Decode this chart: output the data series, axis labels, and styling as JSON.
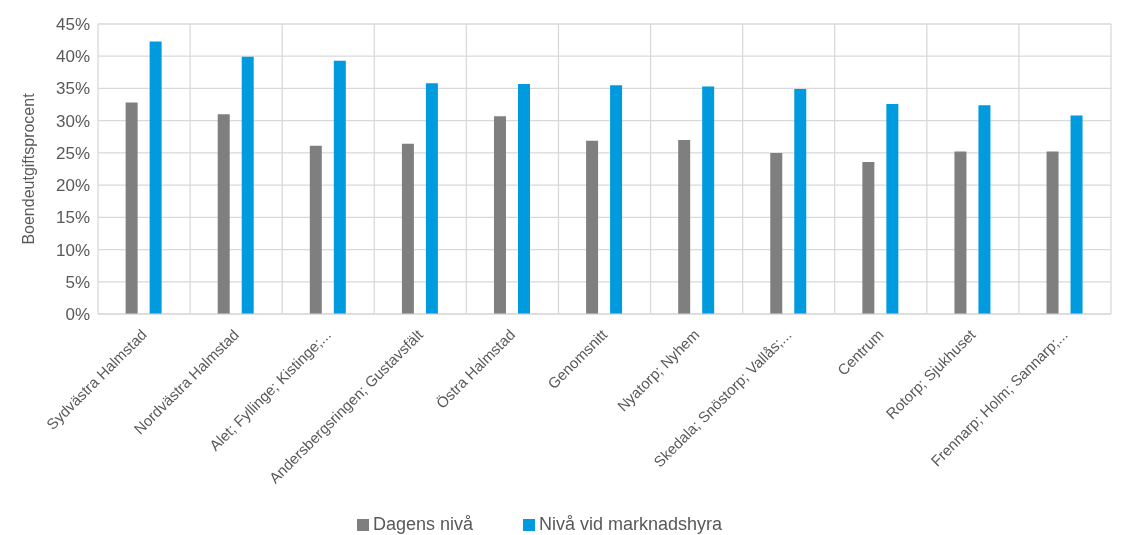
{
  "chart_data": {
    "type": "bar",
    "ylabel": "Boendeutgiftsprocent",
    "categories": [
      "Sydvästra Halmstad",
      "Nordvästra Halmstad",
      "Alet; Fyllinge; Kistinge;...",
      "Andersbergsringen; Gustavsfält",
      "Östra Halmstad",
      "Genomsnitt",
      "Nyatorp; Nyhem",
      "Skedala; Snöstorp; Vallås;...",
      "Centrum",
      "Rotorp; Sjukhuset",
      "Frennarp; Holm; Sannarp;..."
    ],
    "series": [
      {
        "name": "Dagens nivå",
        "color": "#7f7f7f",
        "values": [
          32.8,
          31.0,
          26.1,
          26.4,
          30.7,
          26.9,
          27.0,
          25.0,
          23.6,
          25.2,
          25.2
        ]
      },
      {
        "name": "Nivå vid marknadshyra",
        "color": "#009ade",
        "values": [
          42.3,
          39.9,
          39.3,
          35.8,
          35.7,
          35.5,
          35.3,
          34.9,
          32.6,
          32.4,
          30.8
        ]
      }
    ],
    "ylim": [
      0,
      45
    ],
    "yticks": [
      {
        "value": 0,
        "label": "0%"
      },
      {
        "value": 5,
        "label": "5%"
      },
      {
        "value": 10,
        "label": "10%"
      },
      {
        "value": 15,
        "label": "15%"
      },
      {
        "value": 20,
        "label": "20%"
      },
      {
        "value": 25,
        "label": "25%"
      },
      {
        "value": 30,
        "label": "30%"
      },
      {
        "value": 35,
        "label": "35%"
      },
      {
        "value": 40,
        "label": "40%"
      },
      {
        "value": 45,
        "label": "45%"
      }
    ],
    "grid": true,
    "legend": "bottom"
  }
}
